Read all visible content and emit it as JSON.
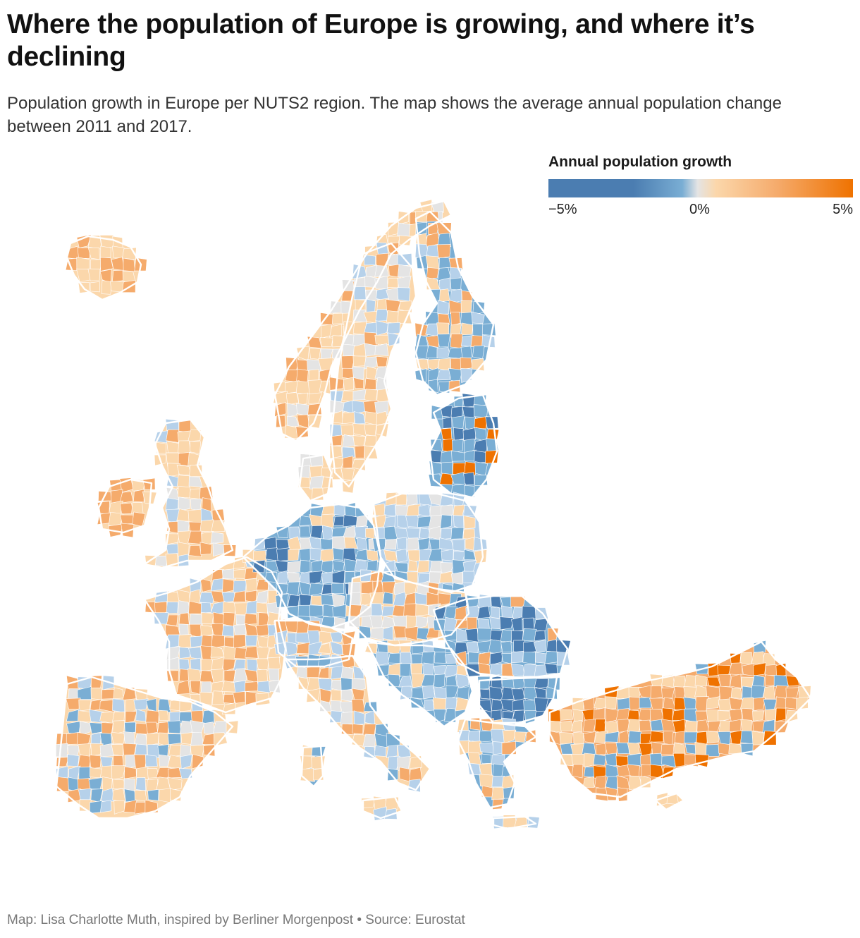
{
  "title": "Where the population of Europe is growing, and where it’s declining",
  "subtitle": "Population growth in Europe per NUTS2 region. The map shows the average annual population change between 2011 and 2017.",
  "legend": {
    "title": "Annual population growth",
    "ticks": [
      "−5%",
      "0%",
      "5%"
    ],
    "min_value": -5,
    "max_value": 5,
    "colors": {
      "strong_decline": "#4b7db1",
      "decline": "#7aaed4",
      "slight_decline": "#b6d1ea",
      "zero": "#e4e4e4",
      "slight_growth": "#fbd7ab",
      "growth": "#f5ab6c",
      "strong_growth": "#ef7200"
    }
  },
  "footer": {
    "credit": "Map: Lisa Charlotte Muth, inspired by Berliner Morgenpost • Source: Eurostat"
  },
  "chart_data": {
    "type": "choropleth",
    "measure": "average annual population change 2011–2017",
    "unit": "%",
    "scale_domain": [
      -5,
      5
    ]
  }
}
